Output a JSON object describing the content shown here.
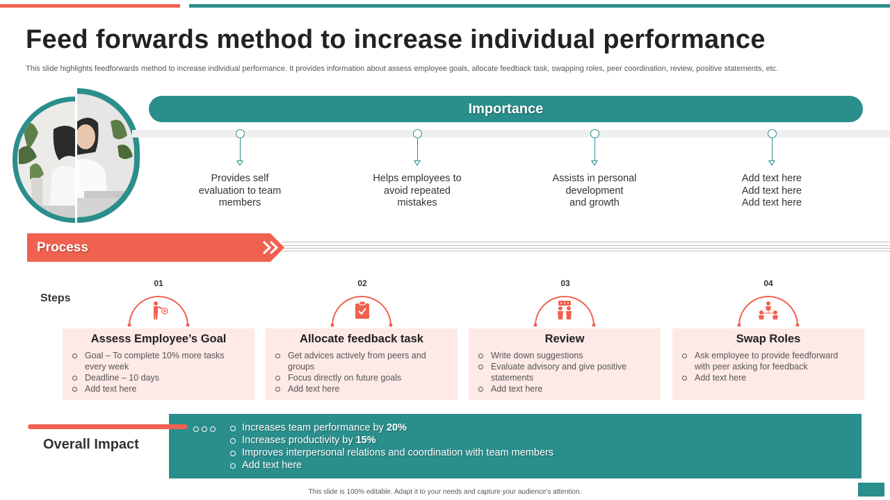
{
  "title": "Feed forwards method to increase individual performance",
  "subtitle": "This slide highlights feedforwards method to increase individual performance. It provides information about assess employee goals, allocate feedback task, swapping roles, peer coordination, review, positive statements, etc.",
  "colors": {
    "teal": "#2a8e8c",
    "coral": "#f0614f",
    "card": "#fde9e6"
  },
  "importance": {
    "label": "Importance",
    "items": [
      {
        "lines": [
          "Provides self",
          "evaluation to team",
          "members"
        ]
      },
      {
        "lines": [
          "Helps employees to",
          "avoid repeated",
          "mistakes"
        ]
      },
      {
        "lines": [
          "Assists in personal",
          "development",
          "and growth"
        ]
      },
      {
        "lines": [
          "Add text here",
          "Add text here",
          "Add text here"
        ]
      }
    ]
  },
  "process": {
    "label": "Process",
    "steps_label": "Steps"
  },
  "steps": [
    {
      "num": "01",
      "icon": "pointing-target-icon",
      "title": "Assess Employee’s Goal",
      "bullets": [
        "Goal – To complete 10% more tasks every week",
        "Deadline – 10 days",
        "Add text here"
      ]
    },
    {
      "num": "02",
      "icon": "clipboard-check-icon",
      "title": "Allocate feedback task",
      "bullets": [
        "Get advices actively from peers and groups",
        "Focus directly on future goals",
        "Add text here"
      ]
    },
    {
      "num": "03",
      "icon": "people-discussion-icon",
      "title": "Review",
      "bullets": [
        "Write down suggestions",
        "Evaluate advisory and give positive statements",
        "Add text here"
      ]
    },
    {
      "num": "04",
      "icon": "team-hierarchy-icon",
      "title": "Swap Roles",
      "bullets": [
        "Ask employee to provide feedforward with peer asking for feedback",
        "Add text here"
      ]
    }
  ],
  "impact": {
    "label": "Overall Impact",
    "items": [
      {
        "text": "Increases team performance by ",
        "bold": "20%"
      },
      {
        "text": "Increases productivity by ",
        "bold": "15%"
      },
      {
        "text": "Improves interpersonal relations and coordination with team members",
        "bold": ""
      },
      {
        "text": "Add text here",
        "bold": ""
      }
    ]
  },
  "footer": "This slide is 100% editable. Adapt it to your needs and capture your audience’s attention."
}
